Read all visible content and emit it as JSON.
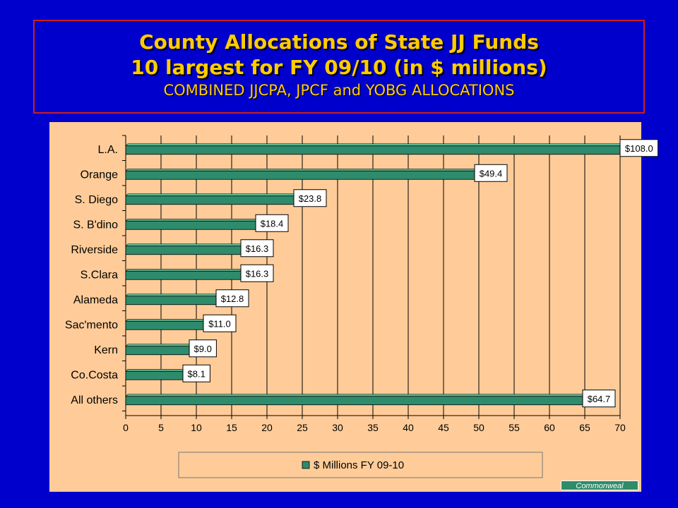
{
  "title": {
    "line1": "County Allocations of State JJ Funds",
    "line2": "10 largest for FY 09/10 (in $ millions)",
    "line3": "COMBINED JJCPA, JPCF and YOBG ALLOCATIONS"
  },
  "chart_data": {
    "type": "bar",
    "orientation": "horizontal",
    "categories": [
      "L.A.",
      "Orange",
      "S. Diego",
      "S. B'dino",
      "Riverside",
      "S.Clara",
      "Alameda",
      "Sac'mento",
      "Kern",
      "Co.Costa",
      "All others"
    ],
    "series": [
      {
        "name": "$ Millions FY 09-10",
        "values": [
          108.0,
          49.4,
          23.8,
          18.4,
          16.3,
          16.3,
          12.8,
          11.0,
          9.0,
          8.1,
          64.7
        ],
        "data_labels": [
          "$108.0",
          "$49.4",
          "$23.8",
          "$18.4",
          "$16.3",
          "$16.3",
          "$12.8",
          "$11.0",
          "$9.0",
          "$8.1",
          "$64.7"
        ]
      }
    ],
    "xlim": [
      0,
      70
    ],
    "xticks": [
      0,
      5,
      10,
      15,
      20,
      25,
      30,
      35,
      40,
      45,
      50,
      55,
      60,
      65,
      70
    ],
    "grid": "vertical",
    "legend_position": "bottom",
    "bar_color": "#2e8b6b",
    "background_color": "#ffcc99"
  },
  "source": "Commonweal"
}
